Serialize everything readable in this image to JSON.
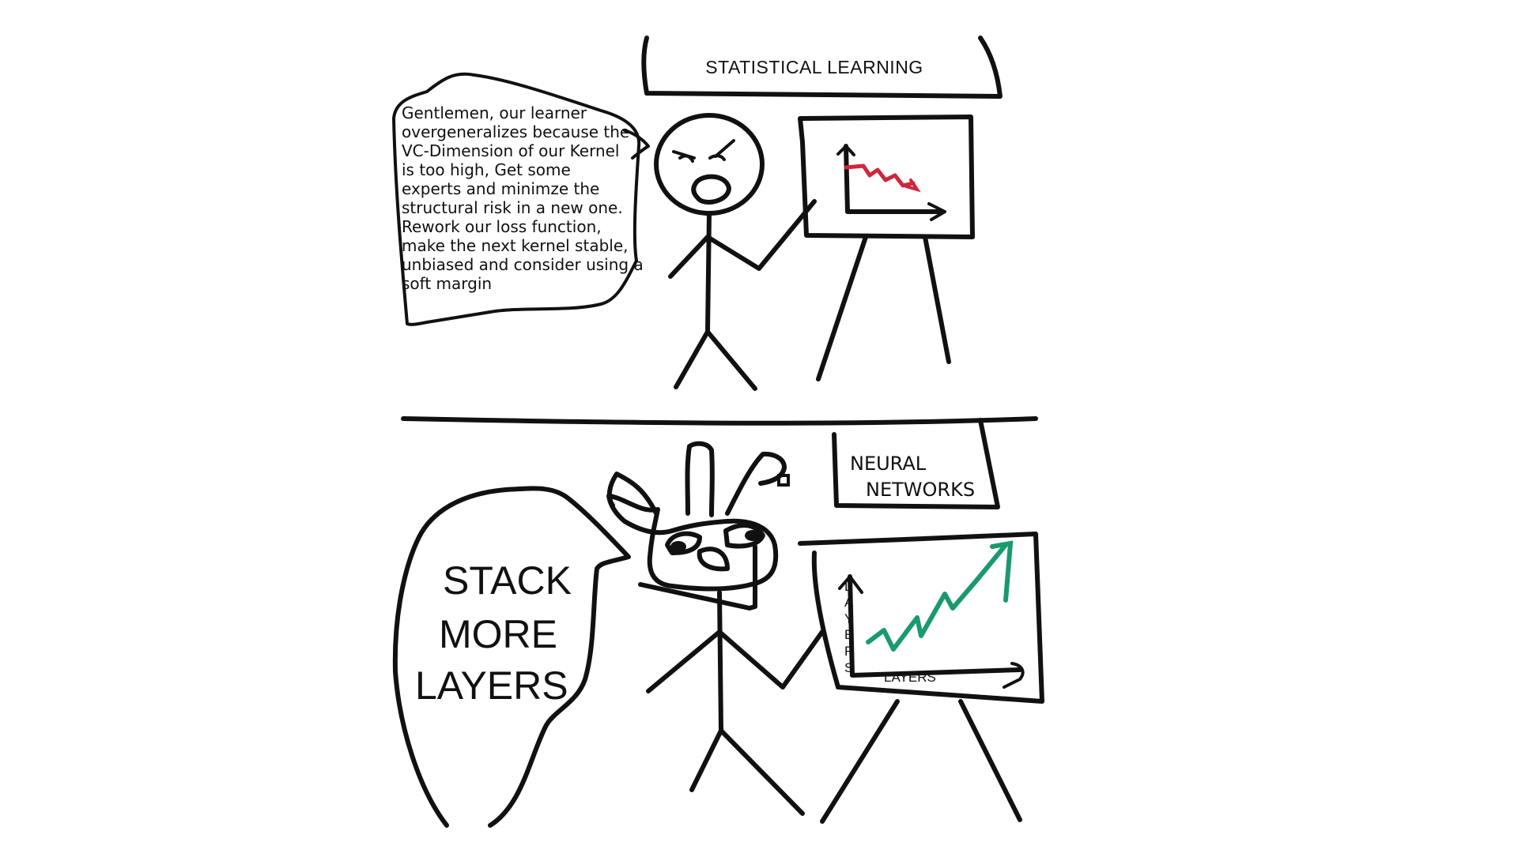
{
  "panel_top": {
    "banner": "STATISTICAL LEARNING",
    "speech_lines": [
      "Gentlemen, our learner",
      "overgeneralizes because the",
      "VC-Dimension of our Kernel",
      "is too high, Get some",
      "experts and minimze the",
      "structural risk in a new one.",
      "Rework our loss function,",
      "make the next kernel stable,",
      "unbiased and consider using a",
      "soft margin"
    ],
    "trend_color": "#d0253a"
  },
  "panel_bottom": {
    "banner_line1": "NEURAL",
    "banner_line2": "NETWORKS",
    "speech_lines": [
      "STACK",
      "MORE",
      "LAYERS"
    ],
    "y_axis_label": [
      "L",
      "A",
      "Y",
      "E",
      "R",
      "S"
    ],
    "x_axis_label": "LAYERS",
    "trend_color": "#1a9a6c"
  }
}
